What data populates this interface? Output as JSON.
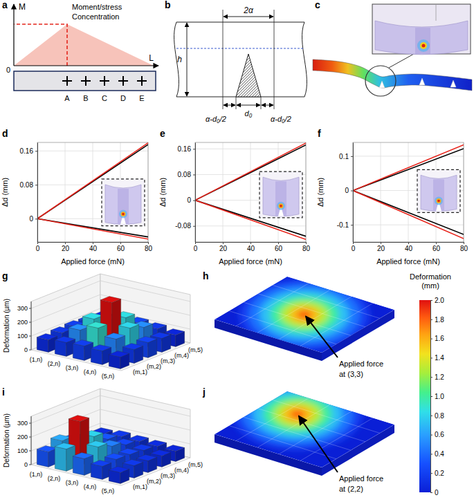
{
  "panel_labels": [
    "a",
    "b",
    "c",
    "d",
    "e",
    "f",
    "g",
    "h",
    "i",
    "j"
  ],
  "diagrams": {
    "a": {
      "annotation": [
        "Moment/stress",
        "Concentration"
      ],
      "y_axis": "M",
      "x_axis": "L",
      "origin": "0",
      "points": [
        "A",
        "B",
        "C",
        "D",
        "E"
      ]
    },
    "b": {
      "width": "2α",
      "height": "h",
      "segments": [
        "α-d₀/2",
        "d₀",
        "α-d₀/2"
      ]
    },
    "h": {
      "annotation": [
        "Applied force",
        "at (3,3)"
      ],
      "load_cell": [
        3,
        3
      ]
    },
    "j": {
      "annotation": [
        "Applied force",
        "at (2,2)"
      ],
      "load_cell": [
        2,
        2
      ]
    },
    "colorbar": {
      "title": [
        "Deformation",
        "(mm)"
      ],
      "range": [
        0,
        2
      ],
      "ticks": [
        0,
        0.2,
        0.4,
        0.6,
        0.8,
        {
          "value": 1,
          "label": "1.0"
        },
        1.2,
        1.4,
        1.6,
        1.8,
        {
          "value": 2,
          "label": "2.0"
        }
      ]
    }
  },
  "chart_data": [
    {
      "type": "line",
      "x_label": "Applied force (mN)",
      "y_label": "Δd (mm)",
      "x": [
        0,
        80
      ],
      "xlim": [
        0,
        80
      ],
      "xticks": [
        0,
        20,
        40,
        60,
        80
      ],
      "ylim": [
        -0.055,
        0.18
      ],
      "yticks": [
        0,
        0.08,
        0.16
      ],
      "grid": true,
      "series": [
        {
          "color": "#000000",
          "values": [
            0,
            0.175
          ]
        },
        {
          "color": "#e8231a",
          "values": [
            0,
            0.179
          ]
        },
        {
          "color": "#000000",
          "values": [
            0,
            -0.043
          ]
        },
        {
          "color": "#e8231a",
          "values": [
            0,
            -0.048
          ]
        }
      ]
    },
    {
      "type": "line",
      "x_label": "Applied force (mN)",
      "y_label": "Δd (mm)",
      "x": [
        0,
        80
      ],
      "xlim": [
        0,
        80
      ],
      "xticks": [
        0,
        20,
        40,
        60,
        80
      ],
      "ylim": [
        -0.13,
        0.18
      ],
      "yticks": [
        -0.08,
        0,
        0.08,
        0.16
      ],
      "grid": true,
      "series": [
        {
          "color": "#000000",
          "values": [
            0,
            0.172
          ]
        },
        {
          "color": "#e8231a",
          "values": [
            0,
            0.178
          ]
        },
        {
          "color": "#000000",
          "values": [
            0,
            -0.112
          ]
        },
        {
          "color": "#e8231a",
          "values": [
            0,
            -0.122
          ]
        }
      ]
    },
    {
      "type": "line",
      "x_label": "Applied force (mN)",
      "y_label": "Δd (mm)",
      "x": [
        0,
        80
      ],
      "xlim": [
        0,
        80
      ],
      "xticks": [
        0,
        20,
        40,
        60,
        80
      ],
      "ylim": [
        -0.15,
        0.14
      ],
      "yticks": [
        -0.1,
        0,
        0.1
      ],
      "grid": true,
      "series": [
        {
          "color": "#000000",
          "values": [
            0,
            0.122
          ]
        },
        {
          "color": "#e8231a",
          "values": [
            0,
            0.133
          ]
        },
        {
          "color": "#000000",
          "values": [
            0,
            -0.128
          ]
        },
        {
          "color": "#e8231a",
          "values": [
            0,
            -0.14
          ]
        }
      ]
    },
    {
      "type": "bar3d",
      "z_label": "Deformation (µm)",
      "x_categories": [
        "(1,n)",
        "(2,n)",
        "(3,n)",
        "(4,n)",
        "(5,n)"
      ],
      "y_categories": [
        "(m,1)",
        "(m,2)",
        "(m,3)",
        "(m,4)",
        "(m,5)"
      ],
      "zlim": [
        0,
        350
      ],
      "zticks": [
        0,
        100,
        200,
        300
      ],
      "grid": true,
      "values": [
        [
          90,
          100,
          105,
          100,
          90
        ],
        [
          100,
          150,
          190,
          140,
          100
        ],
        [
          105,
          195,
          340,
          190,
          110
        ],
        [
          100,
          145,
          185,
          150,
          100
        ],
        [
          85,
          100,
          110,
          100,
          85
        ]
      ]
    },
    {
      "type": "bar3d",
      "z_label": "Deformation (µm)",
      "x_categories": [
        "(1,n)",
        "(2,n)",
        "(3,n)",
        "(4,n)",
        "(5,n)"
      ],
      "y_categories": [
        "(m,1)",
        "(m,2)",
        "(m,3)",
        "(m,4)",
        "(m,5)"
      ],
      "zlim": [
        0,
        350
      ],
      "zticks": [
        0,
        100,
        200,
        300
      ],
      "grid": true,
      "values": [
        [
          110,
          150,
          120,
          95,
          80
        ],
        [
          160,
          320,
          170,
          110,
          90
        ],
        [
          120,
          165,
          130,
          100,
          85
        ],
        [
          95,
          105,
          100,
          90,
          80
        ],
        [
          80,
          90,
          85,
          80,
          75
        ]
      ]
    }
  ]
}
